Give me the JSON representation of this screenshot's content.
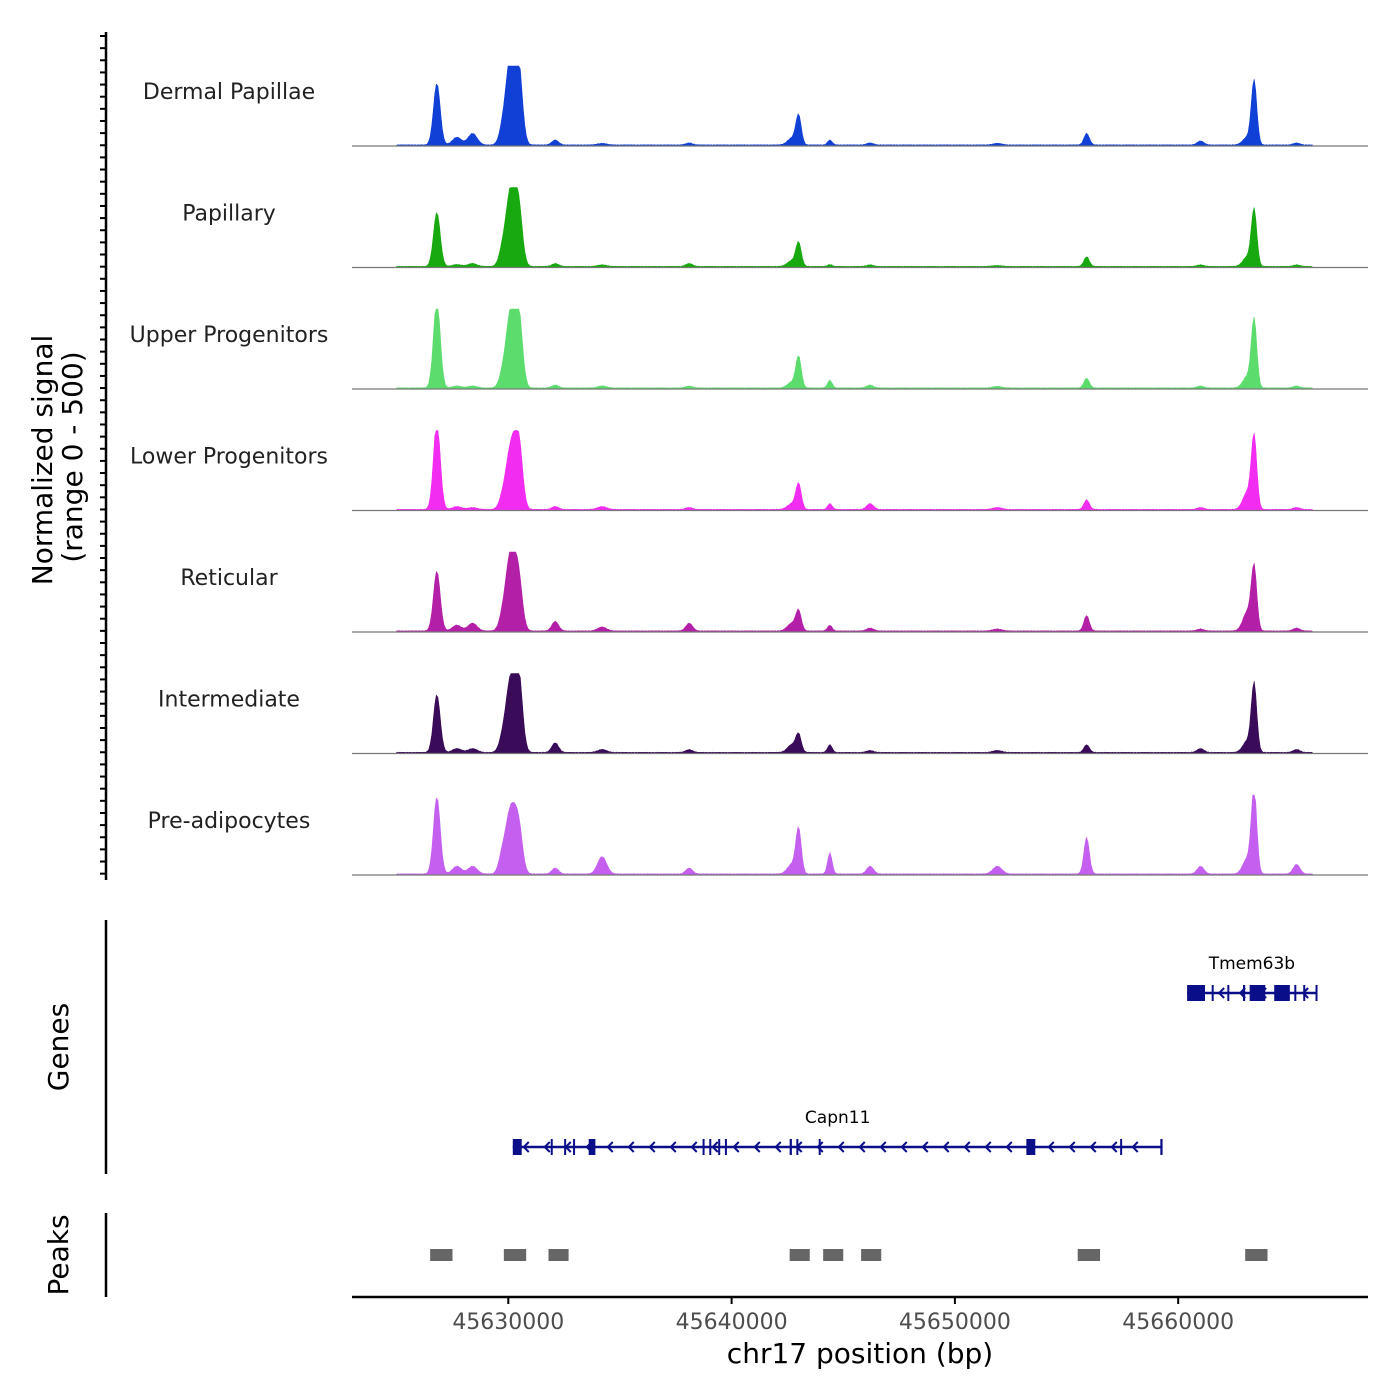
{
  "chart_data": {
    "type": "area",
    "title": "",
    "chromosome": "chr17",
    "xlabel": "chr17 position (bp)",
    "xlim": [
      45623000,
      45668500
    ],
    "xticks": [
      45630000,
      45640000,
      45650000,
      45660000
    ],
    "signal_panel": {
      "ylabel": [
        "Normalized signal",
        "(range 0 - 500)"
      ],
      "ylim": [
        0,
        500
      ],
      "x_start": 45625000,
      "x_end": 45666000,
      "shared_peaks": [
        {
          "x": 45626800,
          "width": 150
        },
        {
          "x": 45627700,
          "width": 200
        },
        {
          "x": 45628400,
          "width": 200
        },
        {
          "x": 45629700,
          "width": 150
        },
        {
          "x": 45630050,
          "width": 220
        },
        {
          "x": 45630300,
          "width": 200
        },
        {
          "x": 45630500,
          "width": 160
        },
        {
          "x": 45632100,
          "width": 150
        },
        {
          "x": 45634200,
          "width": 200
        },
        {
          "x": 45638100,
          "width": 150
        },
        {
          "x": 45642700,
          "width": 200
        },
        {
          "x": 45643000,
          "width": 120
        },
        {
          "x": 45644400,
          "width": 100
        },
        {
          "x": 45646200,
          "width": 150
        },
        {
          "x": 45651900,
          "width": 200
        },
        {
          "x": 45655900,
          "width": 120
        },
        {
          "x": 45661000,
          "width": 150
        },
        {
          "x": 45663100,
          "width": 200
        },
        {
          "x": 45663400,
          "width": 120
        },
        {
          "x": 45665300,
          "width": 150
        }
      ],
      "tracks": [
        {
          "name": "Dermal Papillae",
          "color": "#1140d6",
          "values": [
            320,
            40,
            60,
            30,
            340,
            280,
            230,
            25,
            8,
            10,
            35,
            150,
            25,
            10,
            8,
            60,
            20,
            40,
            330,
            10
          ]
        },
        {
          "name": "Papillary",
          "color": "#18a80f",
          "values": [
            280,
            10,
            15,
            40,
            290,
            230,
            170,
            15,
            8,
            15,
            30,
            120,
            10,
            8,
            5,
            50,
            8,
            50,
            290,
            8
          ]
        },
        {
          "name": "Upper Progenitors",
          "color": "#5ddc6e",
          "values": [
            460,
            10,
            10,
            25,
            280,
            250,
            230,
            15,
            10,
            10,
            30,
            160,
            40,
            15,
            8,
            50,
            10,
            60,
            350,
            10
          ]
        },
        {
          "name": "Lower Progenitors",
          "color": "#f22cf0",
          "values": [
            460,
            15,
            10,
            25,
            230,
            200,
            230,
            15,
            15,
            10,
            30,
            130,
            30,
            30,
            10,
            50,
            10,
            90,
            370,
            10
          ]
        },
        {
          "name": "Reticular",
          "color": "#b41fa8",
          "values": [
            310,
            30,
            40,
            30,
            310,
            200,
            150,
            50,
            20,
            40,
            40,
            100,
            30,
            15,
            10,
            80,
            10,
            100,
            320,
            15
          ]
        },
        {
          "name": "Intermediate",
          "color": "#3a0b58",
          "values": [
            300,
            20,
            20,
            30,
            280,
            220,
            260,
            50,
            15,
            15,
            40,
            90,
            40,
            10,
            10,
            40,
            20,
            60,
            350,
            15
          ]
        },
        {
          "name": "Pre-adipocytes",
          "color": "#c55ff0",
          "values": [
            400,
            40,
            40,
            60,
            260,
            160,
            150,
            30,
            90,
            30,
            50,
            230,
            110,
            40,
            40,
            190,
            40,
            80,
            430,
            50
          ]
        }
      ]
    },
    "genes_panel": {
      "ylabel": "Genes",
      "color": "#0a0e88",
      "genes": [
        {
          "name": "Tmem63b",
          "start": 45660400,
          "end": 45666200,
          "strand": "-",
          "exons": [
            [
              45660400,
              45661200
            ],
            [
              45661500,
              45661550
            ],
            [
              45662200,
              45662260
            ],
            [
              45662900,
              45663000
            ],
            [
              45663200,
              45663900
            ],
            [
              45664300,
              45665000
            ],
            [
              45665200,
              45665260
            ],
            [
              45665600,
              45665660
            ],
            [
              45666150,
              45666200
            ]
          ]
        },
        {
          "name": "Capn11",
          "start": 45630200,
          "end": 45659300,
          "strand": "-",
          "exons": [
            [
              45630200,
              45630600
            ],
            [
              45631900,
              45631960
            ],
            [
              45632500,
              45632560
            ],
            [
              45632900,
              45632960
            ],
            [
              45633600,
              45633900
            ],
            [
              45638700,
              45638760
            ],
            [
              45639000,
              45639060
            ],
            [
              45639400,
              45639460
            ],
            [
              45639700,
              45639760
            ],
            [
              45642600,
              45642700
            ],
            [
              45642900,
              45642960
            ],
            [
              45643900,
              45643960
            ],
            [
              45653200,
              45653600
            ],
            [
              45657400,
              45657460
            ],
            [
              45659200,
              45659300
            ]
          ]
        }
      ]
    },
    "peaks_panel": {
      "ylabel": "Peaks",
      "color": "#666666",
      "peaks": [
        [
          45626500,
          45627500
        ],
        [
          45629800,
          45630800
        ],
        [
          45631800,
          45632700
        ],
        [
          45642600,
          45643500
        ],
        [
          45644100,
          45645000
        ],
        [
          45645800,
          45646700
        ],
        [
          45655500,
          45656500
        ],
        [
          45663000,
          45664000
        ]
      ]
    }
  }
}
